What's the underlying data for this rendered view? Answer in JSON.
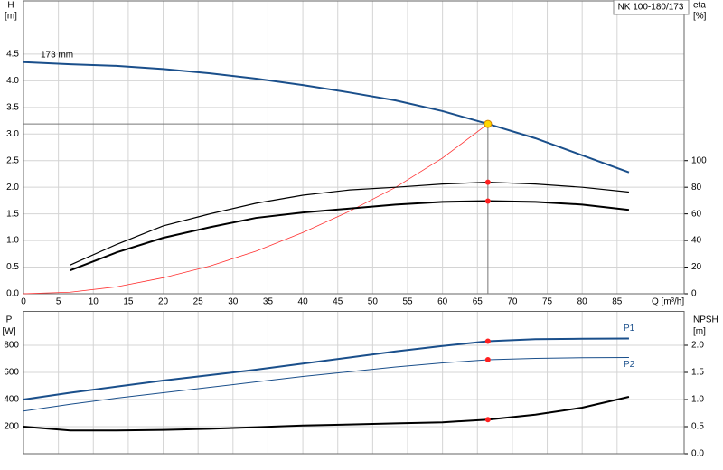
{
  "chart_data": [
    {
      "type": "line",
      "title": "NK 100-180/173",
      "ylabel": "H",
      "yunit": "[m]",
      "y2label": "eta",
      "y2unit": "[%]",
      "xlabel": "Q [m³/h]",
      "annotation": "173 mm",
      "xlim": [
        0,
        94.6
      ],
      "xticks": [
        0,
        5,
        10,
        15,
        20,
        25,
        30,
        35,
        40,
        45,
        50,
        55,
        60,
        65,
        70,
        75,
        80,
        85
      ],
      "ylim": [
        0,
        5.5
      ],
      "yticks": [
        {
          "value": 0,
          "label": "0.0"
        },
        0.5,
        {
          "value": 1,
          "label": "1.0"
        },
        1.5,
        {
          "value": 2,
          "label": "2.0"
        },
        2.5,
        {
          "value": 3,
          "label": "3.0"
        },
        3.5,
        {
          "value": 4,
          "label": "4.0"
        },
        4.5
      ],
      "y2lim": [
        0,
        220
      ],
      "y2ticks": [
        0,
        20,
        40,
        60,
        80,
        100
      ],
      "grid": true,
      "operating_point": {
        "x": 66.5,
        "y": 3.19
      },
      "series": [
        {
          "color": "#1a4f8b",
          "width": 2,
          "axis": "y",
          "mark_operating_point": false,
          "x": [
            0,
            6.7,
            13.3,
            20,
            26.7,
            33.3,
            40,
            46.7,
            53.3,
            60,
            66.5,
            73.3,
            80,
            86.7
          ],
          "values": [
            4.35,
            4.31,
            4.28,
            4.22,
            4.14,
            4.04,
            3.92,
            3.78,
            3.63,
            3.43,
            3.19,
            2.92,
            2.6,
            2.28
          ]
        },
        {
          "color": "#ff3030",
          "width": 0.8,
          "axis": "y",
          "mark_operating_point": false,
          "x": [
            0,
            6.7,
            13.3,
            20,
            26.7,
            33.3,
            40,
            46.7,
            53.3,
            60,
            66.5
          ],
          "values": [
            0,
            0.03,
            0.13,
            0.3,
            0.52,
            0.8,
            1.15,
            1.55,
            2.0,
            2.55,
            3.19
          ]
        },
        {
          "color": "#000000",
          "width": 1.2,
          "axis": "y2",
          "mark_operating_point": true,
          "x": [
            6.7,
            13.3,
            20,
            26.7,
            33.3,
            40,
            46.7,
            53.3,
            60,
            66.5,
            73.3,
            80,
            86.7
          ],
          "values": [
            21.6,
            37,
            51,
            60,
            68,
            74,
            78,
            80,
            82.4,
            83.8,
            82.4,
            80,
            76.4
          ]
        },
        {
          "color": "#000000",
          "width": 2,
          "axis": "y2",
          "mark_operating_point": true,
          "x": [
            6.7,
            13.3,
            20,
            26.7,
            33.3,
            40,
            46.7,
            53.3,
            60,
            66.5,
            73.3,
            80,
            86.7
          ],
          "values": [
            17.6,
            31,
            42,
            50,
            57,
            61,
            64,
            67,
            69,
            69.6,
            69,
            67,
            63
          ]
        }
      ]
    },
    {
      "type": "line",
      "ylabel": "P",
      "yunit": "[W]",
      "y2label": "NPSH",
      "y2unit": "[m]",
      "xlim": [
        0,
        94.6
      ],
      "ylim": [
        0,
        1050
      ],
      "yticks": [
        200,
        400,
        600,
        800
      ],
      "y2lim": [
        0,
        2.625
      ],
      "y2ticks": [
        {
          "value": 0,
          "label": "0.0"
        },
        0.5,
        {
          "value": 1,
          "label": "1.0"
        },
        1.5,
        {
          "value": 2,
          "label": "2.0"
        }
      ],
      "grid": true,
      "operating_point": {
        "x": 66.5
      },
      "series": [
        {
          "name": "P1",
          "color": "#1a4f8b",
          "width": 2,
          "axis": "y",
          "mark_operating_point": true,
          "x": [
            0,
            6.7,
            13.3,
            20,
            26.7,
            33.3,
            40,
            46.7,
            53.3,
            60,
            66.5,
            73.3,
            80,
            86.7
          ],
          "values": [
            400,
            450,
            495,
            540,
            580,
            620,
            665,
            710,
            755,
            795,
            830,
            845,
            848,
            850
          ]
        },
        {
          "name": "P2",
          "color": "#1a4f8b",
          "width": 1,
          "axis": "y",
          "mark_operating_point": true,
          "x": [
            0,
            6.7,
            13.3,
            20,
            26.7,
            33.3,
            40,
            46.7,
            53.3,
            60,
            66.5,
            73.3,
            80,
            86.7
          ],
          "values": [
            315,
            365,
            410,
            450,
            490,
            530,
            570,
            605,
            640,
            670,
            693,
            703,
            708,
            710
          ]
        },
        {
          "color": "#000000",
          "width": 2,
          "axis": "y2",
          "mark_operating_point": true,
          "x": [
            0,
            6.7,
            13.3,
            20,
            26.7,
            33.3,
            40,
            46.7,
            53.3,
            60,
            66.5,
            73.3,
            80,
            86.7
          ],
          "values": [
            0.5,
            0.43,
            0.43,
            0.44,
            0.46,
            0.49,
            0.52,
            0.54,
            0.56,
            0.58,
            0.63,
            0.72,
            0.85,
            1.05
          ]
        }
      ]
    }
  ]
}
